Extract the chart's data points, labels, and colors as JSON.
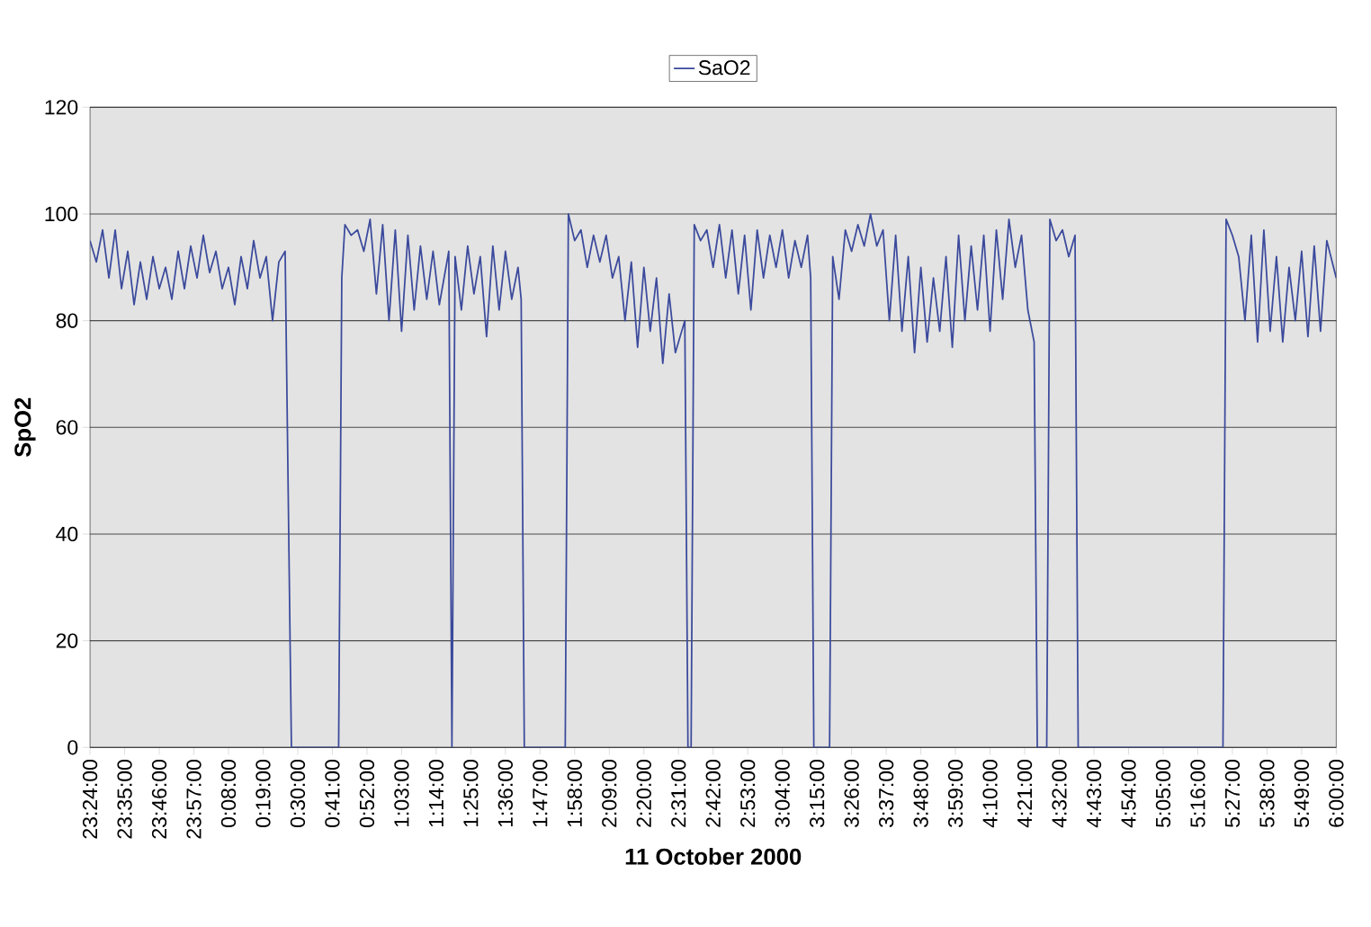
{
  "chart_data": {
    "type": "line",
    "xlabel": "11 October 2000",
    "ylabel": "SpO2",
    "legend": "top",
    "grid": "y",
    "xlim": [
      "2000-10-10T23:24",
      "2000-10-11T06:00"
    ],
    "ylim": [
      0,
      120
    ],
    "yticks": [
      0,
      20,
      40,
      60,
      80,
      100,
      120
    ],
    "xticks": [
      {
        "value": "2000-10-10T23:24",
        "label": "23:24:00"
      },
      {
        "value": "2000-10-10T23:35",
        "label": "23:35:00"
      },
      {
        "value": "2000-10-10T23:46",
        "label": "23:46:00"
      },
      {
        "value": "2000-10-10T23:57",
        "label": "23:57:00"
      },
      {
        "value": "2000-10-11T00:08",
        "label": "0:08:00"
      },
      {
        "value": "2000-10-11T00:19",
        "label": "0:19:00"
      },
      {
        "value": "2000-10-11T00:30",
        "label": "0:30:00"
      },
      {
        "value": "2000-10-11T00:41",
        "label": "0:41:00"
      },
      {
        "value": "2000-10-11T00:52",
        "label": "0:52:00"
      },
      {
        "value": "2000-10-11T01:03",
        "label": "1:03:00"
      },
      {
        "value": "2000-10-11T01:14",
        "label": "1:14:00"
      },
      {
        "value": "2000-10-11T01:25",
        "label": "1:25:00"
      },
      {
        "value": "2000-10-11T01:36",
        "label": "1:36:00"
      },
      {
        "value": "2000-10-11T01:47",
        "label": "1:47:00"
      },
      {
        "value": "2000-10-11T01:58",
        "label": "1:58:00"
      },
      {
        "value": "2000-10-11T02:09",
        "label": "2:09:00"
      },
      {
        "value": "2000-10-11T02:20",
        "label": "2:20:00"
      },
      {
        "value": "2000-10-11T02:31",
        "label": "2:31:00"
      },
      {
        "value": "2000-10-11T02:42",
        "label": "2:42:00"
      },
      {
        "value": "2000-10-11T02:53",
        "label": "2:53:00"
      },
      {
        "value": "2000-10-11T03:04",
        "label": "3:04:00"
      },
      {
        "value": "2000-10-11T03:15",
        "label": "3:15:00"
      },
      {
        "value": "2000-10-11T03:26",
        "label": "3:26:00"
      },
      {
        "value": "2000-10-11T03:37",
        "label": "3:37:00"
      },
      {
        "value": "2000-10-11T03:48",
        "label": "3:48:00"
      },
      {
        "value": "2000-10-11T03:59",
        "label": "3:59:00"
      },
      {
        "value": "2000-10-11T04:10",
        "label": "4:10:00"
      },
      {
        "value": "2000-10-11T04:21",
        "label": "4:21:00"
      },
      {
        "value": "2000-10-11T04:32",
        "label": "4:32:00"
      },
      {
        "value": "2000-10-11T04:43",
        "label": "4:43:00"
      },
      {
        "value": "2000-10-11T04:54",
        "label": "4:54:00"
      },
      {
        "value": "2000-10-11T05:05",
        "label": "5:05:00"
      },
      {
        "value": "2000-10-11T05:16",
        "label": "5:16:00"
      },
      {
        "value": "2000-10-11T05:27",
        "label": "5:27:00"
      },
      {
        "value": "2000-10-11T05:38",
        "label": "5:38:00"
      },
      {
        "value": "2000-10-11T05:49",
        "label": "5:49:00"
      },
      {
        "value": "2000-10-11T06:00",
        "label": "6:00:00"
      }
    ],
    "series": [
      {
        "name": "SaO2",
        "color": "#3b4a9c",
        "x": [
          "2000-10-10T23:24",
          "2000-10-10T23:26",
          "2000-10-10T23:28",
          "2000-10-10T23:30",
          "2000-10-10T23:32",
          "2000-10-10T23:34",
          "2000-10-10T23:36",
          "2000-10-10T23:38",
          "2000-10-10T23:40",
          "2000-10-10T23:42",
          "2000-10-10T23:44",
          "2000-10-10T23:46",
          "2000-10-10T23:48",
          "2000-10-10T23:50",
          "2000-10-10T23:52",
          "2000-10-10T23:54",
          "2000-10-10T23:56",
          "2000-10-10T23:58",
          "2000-10-11T00:00",
          "2000-10-11T00:02",
          "2000-10-11T00:04",
          "2000-10-11T00:06",
          "2000-10-11T00:08",
          "2000-10-11T00:10",
          "2000-10-11T00:12",
          "2000-10-11T00:14",
          "2000-10-11T00:16",
          "2000-10-11T00:18",
          "2000-10-11T00:20",
          "2000-10-11T00:22",
          "2000-10-11T00:24",
          "2000-10-11T00:26",
          "2000-10-11T00:28",
          "2000-10-11T00:43",
          "2000-10-11T00:44",
          "2000-10-11T00:45",
          "2000-10-11T00:47",
          "2000-10-11T00:49",
          "2000-10-11T00:51",
          "2000-10-11T00:53",
          "2000-10-11T00:55",
          "2000-10-11T00:57",
          "2000-10-11T00:59",
          "2000-10-11T01:01",
          "2000-10-11T01:03",
          "2000-10-11T01:05",
          "2000-10-11T01:07",
          "2000-10-11T01:09",
          "2000-10-11T01:11",
          "2000-10-11T01:13",
          "2000-10-11T01:15",
          "2000-10-11T01:18",
          "2000-10-11T01:19",
          "2000-10-11T01:20",
          "2000-10-11T01:22",
          "2000-10-11T01:24",
          "2000-10-11T01:26",
          "2000-10-11T01:28",
          "2000-10-11T01:30",
          "2000-10-11T01:32",
          "2000-10-11T01:34",
          "2000-10-11T01:36",
          "2000-10-11T01:38",
          "2000-10-11T01:40",
          "2000-10-11T01:41",
          "2000-10-11T01:42",
          "2000-10-11T01:55",
          "2000-10-11T01:56",
          "2000-10-11T01:58",
          "2000-10-11T02:00",
          "2000-10-11T02:02",
          "2000-10-11T02:04",
          "2000-10-11T02:06",
          "2000-10-11T02:08",
          "2000-10-11T02:10",
          "2000-10-11T02:12",
          "2000-10-11T02:14",
          "2000-10-11T02:16",
          "2000-10-11T02:18",
          "2000-10-11T02:20",
          "2000-10-11T02:22",
          "2000-10-11T02:24",
          "2000-10-11T02:26",
          "2000-10-11T02:28",
          "2000-10-11T02:30",
          "2000-10-11T02:33",
          "2000-10-11T02:34",
          "2000-10-11T02:35",
          "2000-10-11T02:36",
          "2000-10-11T02:38",
          "2000-10-11T02:40",
          "2000-10-11T02:42",
          "2000-10-11T02:44",
          "2000-10-11T02:46",
          "2000-10-11T02:48",
          "2000-10-11T02:50",
          "2000-10-11T02:52",
          "2000-10-11T02:54",
          "2000-10-11T02:56",
          "2000-10-11T02:58",
          "2000-10-11T03:00",
          "2000-10-11T03:02",
          "2000-10-11T03:04",
          "2000-10-11T03:06",
          "2000-10-11T03:08",
          "2000-10-11T03:10",
          "2000-10-11T03:12",
          "2000-10-11T03:13",
          "2000-10-11T03:14",
          "2000-10-11T03:19",
          "2000-10-11T03:20",
          "2000-10-11T03:22",
          "2000-10-11T03:24",
          "2000-10-11T03:26",
          "2000-10-11T03:28",
          "2000-10-11T03:30",
          "2000-10-11T03:32",
          "2000-10-11T03:34",
          "2000-10-11T03:36",
          "2000-10-11T03:38",
          "2000-10-11T03:40",
          "2000-10-11T03:42",
          "2000-10-11T03:44",
          "2000-10-11T03:46",
          "2000-10-11T03:48",
          "2000-10-11T03:50",
          "2000-10-11T03:52",
          "2000-10-11T03:54",
          "2000-10-11T03:56",
          "2000-10-11T03:58",
          "2000-10-11T04:00",
          "2000-10-11T04:02",
          "2000-10-11T04:04",
          "2000-10-11T04:06",
          "2000-10-11T04:08",
          "2000-10-11T04:10",
          "2000-10-11T04:12",
          "2000-10-11T04:14",
          "2000-10-11T04:16",
          "2000-10-11T04:18",
          "2000-10-11T04:20",
          "2000-10-11T04:22",
          "2000-10-11T04:24",
          "2000-10-11T04:25",
          "2000-10-11T04:28",
          "2000-10-11T04:29",
          "2000-10-11T04:31",
          "2000-10-11T04:33",
          "2000-10-11T04:35",
          "2000-10-11T04:37",
          "2000-10-11T04:38",
          "2000-10-11T05:24",
          "2000-10-11T05:25",
          "2000-10-11T05:27",
          "2000-10-11T05:29",
          "2000-10-11T05:31",
          "2000-10-11T05:33",
          "2000-10-11T05:35",
          "2000-10-11T05:37",
          "2000-10-11T05:39",
          "2000-10-11T05:41",
          "2000-10-11T05:43",
          "2000-10-11T05:45",
          "2000-10-11T05:47",
          "2000-10-11T05:49",
          "2000-10-11T05:51",
          "2000-10-11T05:53",
          "2000-10-11T05:55",
          "2000-10-11T05:57",
          "2000-10-11T06:00"
        ],
        "values": [
          95,
          91,
          97,
          88,
          97,
          86,
          93,
          83,
          91,
          84,
          92,
          86,
          90,
          84,
          93,
          86,
          94,
          88,
          96,
          89,
          93,
          86,
          90,
          83,
          92,
          86,
          95,
          88,
          92,
          80,
          91,
          93,
          0,
          0,
          88,
          98,
          96,
          97,
          93,
          99,
          85,
          98,
          80,
          97,
          78,
          96,
          82,
          94,
          84,
          93,
          83,
          93,
          0,
          92,
          82,
          94,
          85,
          92,
          77,
          94,
          82,
          93,
          84,
          90,
          84,
          0,
          0,
          100,
          95,
          97,
          90,
          96,
          91,
          96,
          88,
          92,
          80,
          91,
          75,
          90,
          78,
          88,
          72,
          85,
          74,
          80,
          0,
          0,
          98,
          95,
          97,
          90,
          98,
          88,
          97,
          85,
          96,
          82,
          97,
          88,
          96,
          90,
          97,
          88,
          95,
          90,
          96,
          88,
          0,
          0,
          92,
          84,
          97,
          93,
          98,
          94,
          100,
          94,
          97,
          80,
          96,
          78,
          92,
          74,
          90,
          76,
          88,
          78,
          92,
          75,
          96,
          80,
          94,
          82,
          96,
          78,
          97,
          84,
          99,
          90,
          96,
          82,
          76,
          0,
          0,
          99,
          95,
          97,
          92,
          96,
          0,
          0,
          99,
          96,
          92,
          80,
          96,
          76,
          97,
          78,
          92,
          76,
          90,
          80,
          93,
          77,
          94,
          78,
          95,
          88
        ]
      }
    ]
  }
}
